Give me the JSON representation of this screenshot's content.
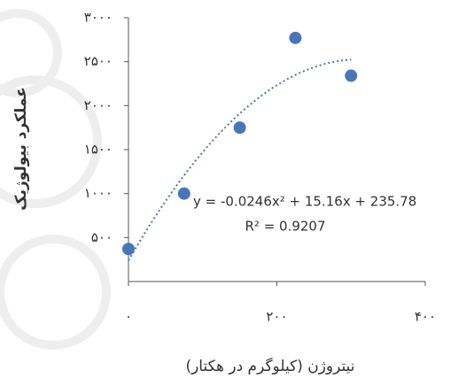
{
  "chart_data": {
    "type": "scatter",
    "ylabel": "عملکرد بیولوژیک",
    "xlabel": "نیتروژن (کیلوگرم در هکتار)",
    "annotations": [
      "y = -0.0246x² + 15.16x + 235.78",
      "R² = 0.9207"
    ],
    "trendline": "polynomial",
    "color": "#4a76b8",
    "x": [
      0,
      75,
      150,
      225,
      300
    ],
    "values": [
      370,
      1000,
      1750,
      2770,
      2340
    ],
    "xlim": [
      0,
      400
    ],
    "ylim": [
      0,
      3000
    ],
    "xticks": [
      {
        "value": 0,
        "label": "۰"
      },
      {
        "value": 200,
        "label": "۲۰۰"
      },
      {
        "value": 400,
        "label": "۴۰۰"
      }
    ],
    "yticks": [
      {
        "value": 500,
        "label": "۵۰۰"
      },
      {
        "value": 1000,
        "label": "۱۰۰۰"
      },
      {
        "value": 1500,
        "label": "۱۵۰۰"
      },
      {
        "value": 2000,
        "label": "۲۰۰۰"
      },
      {
        "value": 2500,
        "label": "۲۵۰۰"
      },
      {
        "value": 3000,
        "label": "۳۰۰۰"
      }
    ]
  }
}
